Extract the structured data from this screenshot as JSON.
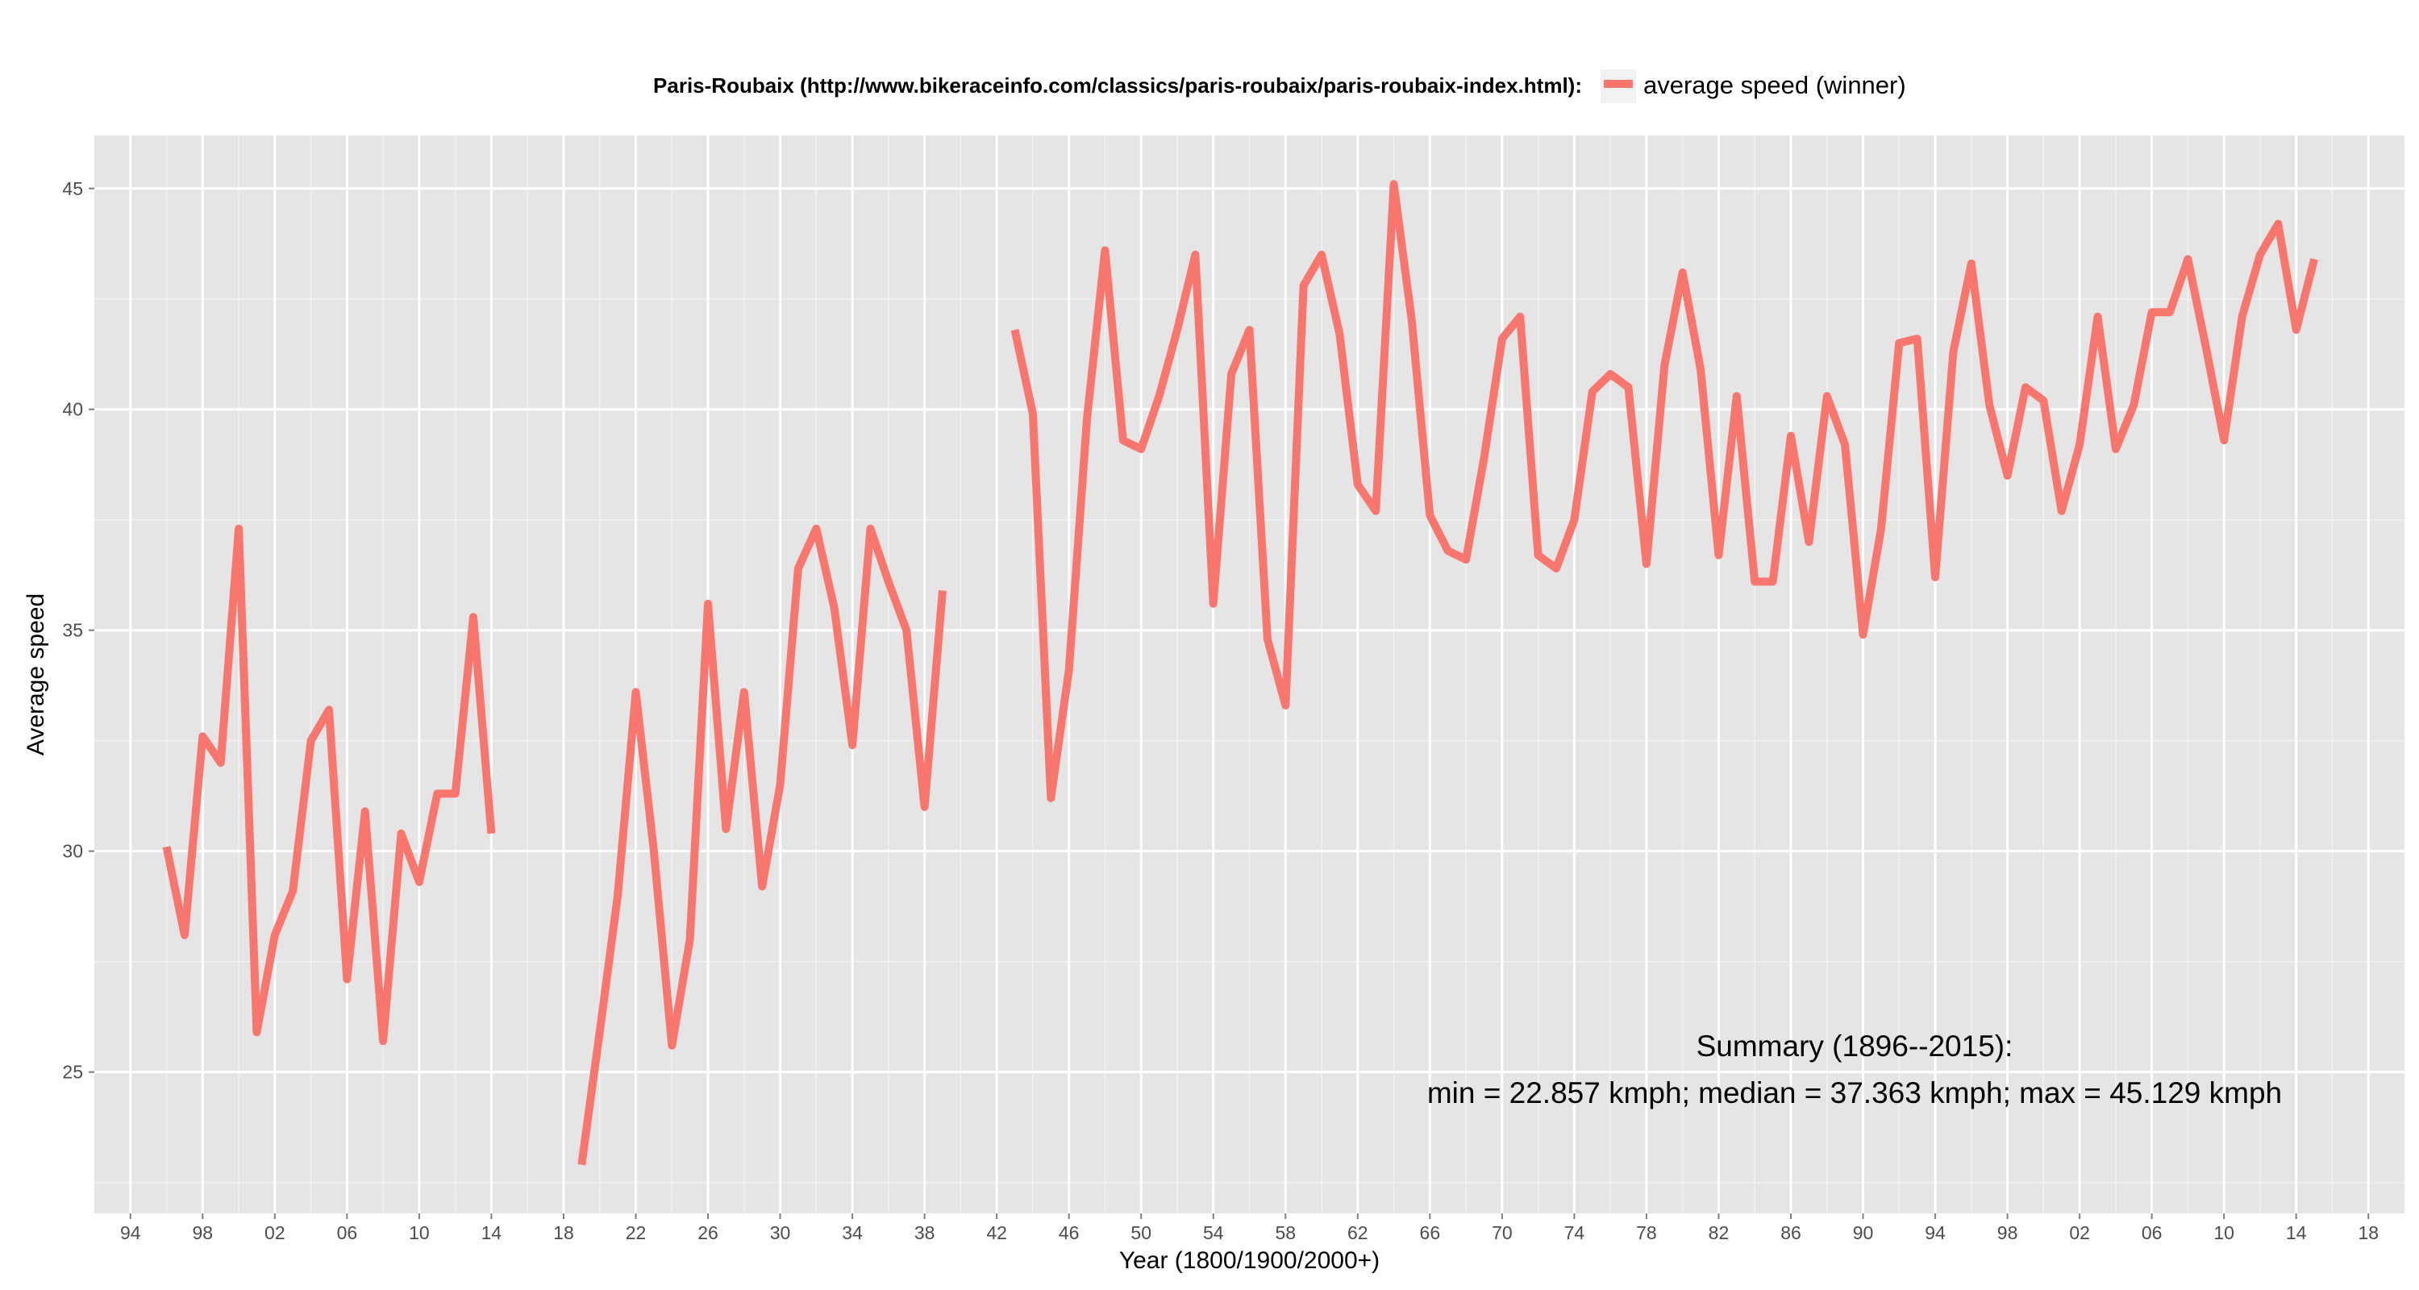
{
  "chart_data": {
    "type": "line",
    "title": "Paris-Roubaix (http://www.bikeraceinfo.com/classics/paris-roubaix/paris-roubaix-index.html):",
    "xlabel": "Year (1800/1900/2000+)",
    "ylabel": "Average speed",
    "xlim": [
      1892,
      2020
    ],
    "ylim": [
      21.8,
      46.2
    ],
    "x_ticks": [
      1894,
      1898,
      1902,
      1906,
      1910,
      1914,
      1918,
      1922,
      1926,
      1930,
      1934,
      1938,
      1942,
      1946,
      1950,
      1954,
      1958,
      1962,
      1966,
      1970,
      1974,
      1978,
      1982,
      1986,
      1990,
      1994,
      1998,
      2002,
      2006,
      2010,
      2014,
      2018
    ],
    "x_tick_labels": [
      "94",
      "98",
      "02",
      "06",
      "10",
      "14",
      "18",
      "22",
      "26",
      "30",
      "34",
      "38",
      "42",
      "46",
      "50",
      "54",
      "58",
      "62",
      "66",
      "70",
      "74",
      "78",
      "82",
      "86",
      "90",
      "94",
      "98",
      "02",
      "06",
      "10",
      "14",
      "18"
    ],
    "y_ticks": [
      25,
      30,
      35,
      40,
      45
    ],
    "y_tick_labels": [
      "25",
      "30",
      "35",
      "40",
      "45"
    ],
    "grid": true,
    "legend_position": "top",
    "series": [
      {
        "name": "average speed (winner)",
        "color": "#f8766d",
        "x": [
          1896,
          1897,
          1898,
          1899,
          1900,
          1901,
          1902,
          1903,
          1904,
          1905,
          1906,
          1907,
          1908,
          1909,
          1910,
          1911,
          1912,
          1913,
          1914,
          1915,
          1916,
          1917,
          1918,
          1919,
          1920,
          1921,
          1922,
          1923,
          1924,
          1925,
          1926,
          1927,
          1928,
          1929,
          1930,
          1931,
          1932,
          1933,
          1934,
          1935,
          1936,
          1937,
          1938,
          1939,
          1940,
          1941,
          1942,
          1943,
          1944,
          1945,
          1946,
          1947,
          1948,
          1949,
          1950,
          1951,
          1952,
          1953,
          1954,
          1955,
          1956,
          1957,
          1958,
          1959,
          1960,
          1961,
          1962,
          1963,
          1964,
          1965,
          1966,
          1967,
          1968,
          1969,
          1970,
          1971,
          1972,
          1973,
          1974,
          1975,
          1976,
          1977,
          1978,
          1979,
          1980,
          1981,
          1982,
          1983,
          1984,
          1985,
          1986,
          1987,
          1988,
          1989,
          1990,
          1991,
          1992,
          1993,
          1994,
          1995,
          1996,
          1997,
          1998,
          1999,
          2000,
          2001,
          2002,
          2003,
          2004,
          2005,
          2006,
          2007,
          2008,
          2009,
          2010,
          2011,
          2012,
          2013,
          2014,
          2015
        ],
        "y": [
          30.1,
          28.1,
          32.6,
          32.0,
          37.3,
          25.9,
          28.1,
          29.1,
          32.5,
          33.2,
          27.1,
          30.9,
          25.7,
          30.4,
          29.3,
          31.3,
          31.3,
          35.3,
          30.4,
          null,
          null,
          null,
          null,
          22.9,
          25.9,
          29.0,
          33.6,
          30.0,
          25.6,
          28.0,
          35.6,
          30.5,
          33.6,
          29.2,
          31.5,
          36.4,
          37.3,
          35.5,
          32.4,
          37.3,
          36.1,
          35.0,
          31.0,
          35.9,
          null,
          null,
          null,
          41.8,
          39.9,
          31.2,
          34.1,
          39.8,
          43.6,
          39.3,
          39.1,
          40.3,
          41.8,
          43.5,
          35.6,
          40.8,
          41.8,
          34.8,
          33.3,
          42.8,
          43.5,
          41.7,
          38.3,
          37.7,
          45.1,
          42.0,
          37.6,
          36.8,
          36.6,
          38.9,
          41.6,
          42.1,
          36.7,
          36.4,
          37.5,
          40.4,
          40.8,
          40.5,
          36.5,
          41.0,
          43.1,
          40.9,
          36.7,
          40.3,
          36.1,
          36.1,
          39.4,
          37.0,
          40.3,
          39.2,
          34.9,
          37.3,
          41.5,
          41.6,
          36.2,
          41.3,
          43.3,
          40.1,
          38.5,
          40.5,
          40.2,
          37.7,
          39.2,
          42.1,
          39.1,
          40.1,
          42.2,
          42.2,
          43.4,
          41.4,
          39.3,
          42.1,
          43.5,
          44.2,
          41.8,
          43.4
        ]
      }
    ],
    "annotations": [
      "Summary (1896--2015):",
      "min = 22.857 kmph; median = 37.363 kmph;  max = 45.129 kmph"
    ]
  }
}
